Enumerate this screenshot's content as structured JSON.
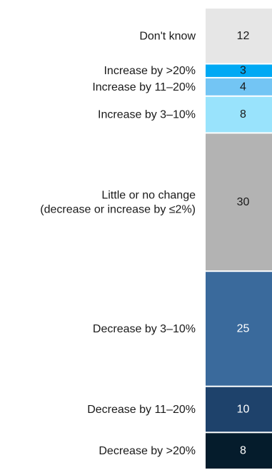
{
  "chart_data": {
    "type": "bar",
    "orientation": "stacked-vertical",
    "categories": [
      "Don't know",
      "Increase by >20%",
      "Increase by 11–20%",
      "Increase by 3–10%",
      [
        "Little or no change",
        "(decrease or increase by ≤2%)"
      ],
      "Decrease by 3–10%",
      "Decrease by 11–20%",
      "Decrease by >20%"
    ],
    "values": [
      12,
      3,
      4,
      8,
      30,
      25,
      10,
      8
    ],
    "colors": [
      "#e6e6e6",
      "#00a9f4",
      "#73c5f4",
      "#99e3fc",
      "#b3b3b3",
      "#3a6a9c",
      "#1e426b",
      "#051c2c"
    ],
    "value_text_colors": [
      "#1a1a1a",
      "#1a1a1a",
      "#1a1a1a",
      "#1a1a1a",
      "#1a1a1a",
      "#ffffff",
      "#ffffff",
      "#ffffff"
    ],
    "total": 100
  }
}
